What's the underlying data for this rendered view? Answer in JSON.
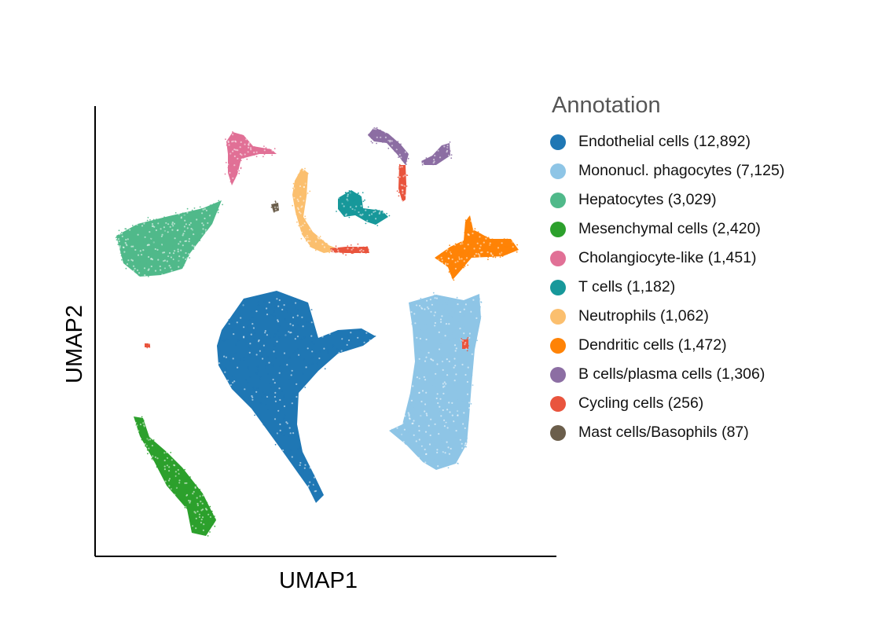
{
  "chart_data": {
    "type": "scatter",
    "xlabel": "UMAP1",
    "ylabel": "UMAP2",
    "legend_title": "Annotation",
    "legend_position": "right",
    "grid": false,
    "ticks": false,
    "series": [
      {
        "name": "Endothelial cells (12,892)",
        "color": "#1f77b4",
        "count": 12892
      },
      {
        "name": "Mononucl. phagocytes (7,125)",
        "color": "#8ec5e6",
        "count": 7125
      },
      {
        "name": "Hepatocytes (3,029)",
        "color": "#50b98a",
        "count": 3029
      },
      {
        "name": "Mesenchymal cells (2,420)",
        "color": "#2ca02c",
        "count": 2420
      },
      {
        "name": "Cholangiocyte-like (1,451)",
        "color": "#e17096",
        "count": 1451
      },
      {
        "name": "T cells (1,182)",
        "color": "#17989a",
        "count": 1182
      },
      {
        "name": "Neutrophils (1,062)",
        "color": "#fbbf6e",
        "count": 1062
      },
      {
        "name": "Dendritic cells (1,472)",
        "color": "#ff8306",
        "count": 1472
      },
      {
        "name": "B cells/plasma cells (1,306)",
        "color": "#8c6ea3",
        "count": 1306
      },
      {
        "name": "Cycling cells (256)",
        "color": "#e9543d",
        "count": 256
      },
      {
        "name": "Mast cells/Basophils (87)",
        "color": "#6b5e4b",
        "count": 87
      }
    ]
  }
}
